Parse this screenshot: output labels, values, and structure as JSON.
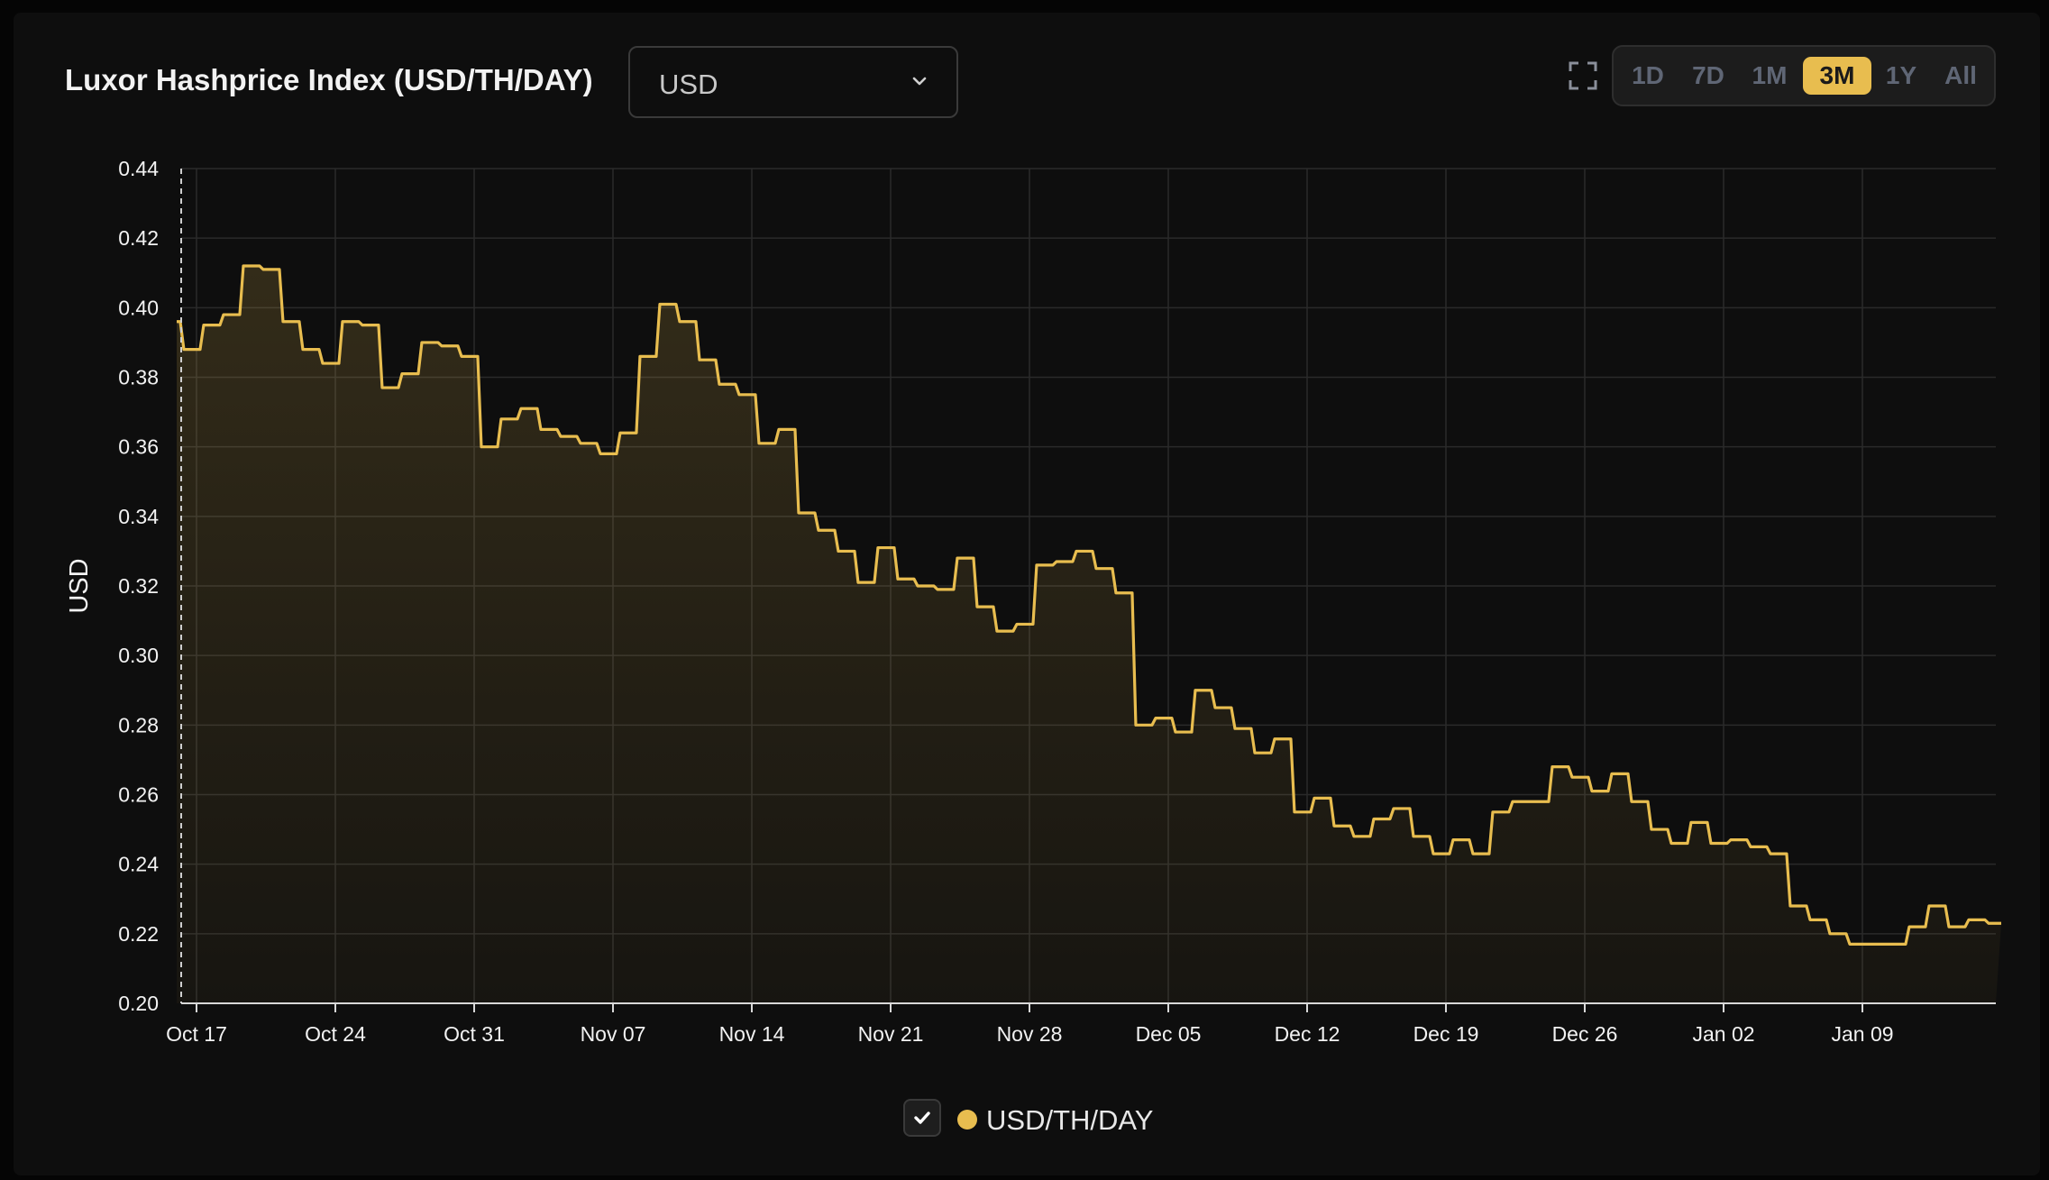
{
  "header": {
    "title": "Luxor Hashprice Index (USD/TH/DAY)",
    "currency_select": "USD",
    "range_buttons": [
      "1D",
      "7D",
      "1M",
      "3M",
      "1Y",
      "All"
    ],
    "active_range": "3M"
  },
  "colors": {
    "accent": "#e8bd4f",
    "background": "#0e0e0e",
    "grid": "#2a2a2a"
  },
  "icons": {
    "fullscreen": "fullscreen-icon",
    "dropdown": "chevron-down-icon",
    "check": "check-icon"
  },
  "legend": {
    "label": "USD/TH/DAY",
    "checked": true
  },
  "chart_data": {
    "type": "area",
    "title": "Luxor Hashprice Index (USD/TH/DAY)",
    "ylabel": "USD",
    "xlabel": "",
    "ylim": [
      0.2,
      0.44
    ],
    "yticks": [
      "0.20",
      "0.22",
      "0.24",
      "0.26",
      "0.28",
      "0.30",
      "0.32",
      "0.34",
      "0.36",
      "0.38",
      "0.40",
      "0.42",
      "0.44"
    ],
    "xticks": [
      "Oct 17",
      "Oct 24",
      "Oct 31",
      "Nov 07",
      "Nov 14",
      "Nov 21",
      "Nov 28",
      "Dec 05",
      "Dec 12",
      "Dec 19",
      "Dec 26",
      "Jan 02",
      "Jan 09"
    ],
    "grid": true,
    "legend_position": "bottom-center",
    "series": [
      {
        "name": "USD/TH/DAY",
        "points": [
          [
            "Oct 16",
            0.396
          ],
          [
            "Oct 17",
            0.388
          ],
          [
            "Oct 18",
            0.395
          ],
          [
            "Oct 19",
            0.398
          ],
          [
            "Oct 20",
            0.412
          ],
          [
            "Oct 21",
            0.411
          ],
          [
            "Oct 22",
            0.396
          ],
          [
            "Oct 23",
            0.388
          ],
          [
            "Oct 24",
            0.384
          ],
          [
            "Oct 25",
            0.396
          ],
          [
            "Oct 26",
            0.395
          ],
          [
            "Oct 27",
            0.377
          ],
          [
            "Oct 28",
            0.381
          ],
          [
            "Oct 29",
            0.39
          ],
          [
            "Oct 30",
            0.389
          ],
          [
            "Oct 31",
            0.386
          ],
          [
            "Nov 01",
            0.36
          ],
          [
            "Nov 02",
            0.368
          ],
          [
            "Nov 03",
            0.371
          ],
          [
            "Nov 04",
            0.365
          ],
          [
            "Nov 05",
            0.363
          ],
          [
            "Nov 06",
            0.361
          ],
          [
            "Nov 07",
            0.358
          ],
          [
            "Nov 08",
            0.364
          ],
          [
            "Nov 09",
            0.386
          ],
          [
            "Nov 10",
            0.401
          ],
          [
            "Nov 11",
            0.396
          ],
          [
            "Nov 12",
            0.385
          ],
          [
            "Nov 13",
            0.378
          ],
          [
            "Nov 14",
            0.375
          ],
          [
            "Nov 15",
            0.361
          ],
          [
            "Nov 16",
            0.365
          ],
          [
            "Nov 17",
            0.341
          ],
          [
            "Nov 18",
            0.336
          ],
          [
            "Nov 19",
            0.33
          ],
          [
            "Nov 20",
            0.321
          ],
          [
            "Nov 21",
            0.331
          ],
          [
            "Nov 22",
            0.322
          ],
          [
            "Nov 23",
            0.32
          ],
          [
            "Nov 24",
            0.319
          ],
          [
            "Nov 25",
            0.328
          ],
          [
            "Nov 26",
            0.314
          ],
          [
            "Nov 27",
            0.307
          ],
          [
            "Nov 28",
            0.309
          ],
          [
            "Nov 29",
            0.326
          ],
          [
            "Nov 30",
            0.327
          ],
          [
            "Dec 01",
            0.33
          ],
          [
            "Dec 02",
            0.325
          ],
          [
            "Dec 03",
            0.318
          ],
          [
            "Dec 04",
            0.28
          ],
          [
            "Dec 05",
            0.282
          ],
          [
            "Dec 06",
            0.278
          ],
          [
            "Dec 07",
            0.29
          ],
          [
            "Dec 08",
            0.285
          ],
          [
            "Dec 09",
            0.279
          ],
          [
            "Dec 10",
            0.272
          ],
          [
            "Dec 11",
            0.276
          ],
          [
            "Dec 12",
            0.255
          ],
          [
            "Dec 13",
            0.259
          ],
          [
            "Dec 14",
            0.251
          ],
          [
            "Dec 15",
            0.248
          ],
          [
            "Dec 16",
            0.253
          ],
          [
            "Dec 17",
            0.256
          ],
          [
            "Dec 18",
            0.248
          ],
          [
            "Dec 19",
            0.243
          ],
          [
            "Dec 20",
            0.247
          ],
          [
            "Dec 21",
            0.243
          ],
          [
            "Dec 22",
            0.255
          ],
          [
            "Dec 23",
            0.258
          ],
          [
            "Dec 24",
            0.258
          ],
          [
            "Dec 25",
            0.268
          ],
          [
            "Dec 26",
            0.265
          ],
          [
            "Dec 27",
            0.261
          ],
          [
            "Dec 28",
            0.266
          ],
          [
            "Dec 29",
            0.258
          ],
          [
            "Dec 30",
            0.25
          ],
          [
            "Dec 31",
            0.246
          ],
          [
            "Jan 01",
            0.252
          ],
          [
            "Jan 02",
            0.246
          ],
          [
            "Jan 03",
            0.247
          ],
          [
            "Jan 04",
            0.245
          ],
          [
            "Jan 05",
            0.243
          ],
          [
            "Jan 06",
            0.228
          ],
          [
            "Jan 07",
            0.224
          ],
          [
            "Jan 08",
            0.22
          ],
          [
            "Jan 09",
            0.217
          ],
          [
            "Jan 10",
            0.217
          ],
          [
            "Jan 11",
            0.217
          ],
          [
            "Jan 12",
            0.222
          ],
          [
            "Jan 13",
            0.228
          ],
          [
            "Jan 14",
            0.222
          ],
          [
            "Jan 15",
            0.224
          ],
          [
            "Jan 16",
            0.223
          ]
        ]
      }
    ]
  }
}
